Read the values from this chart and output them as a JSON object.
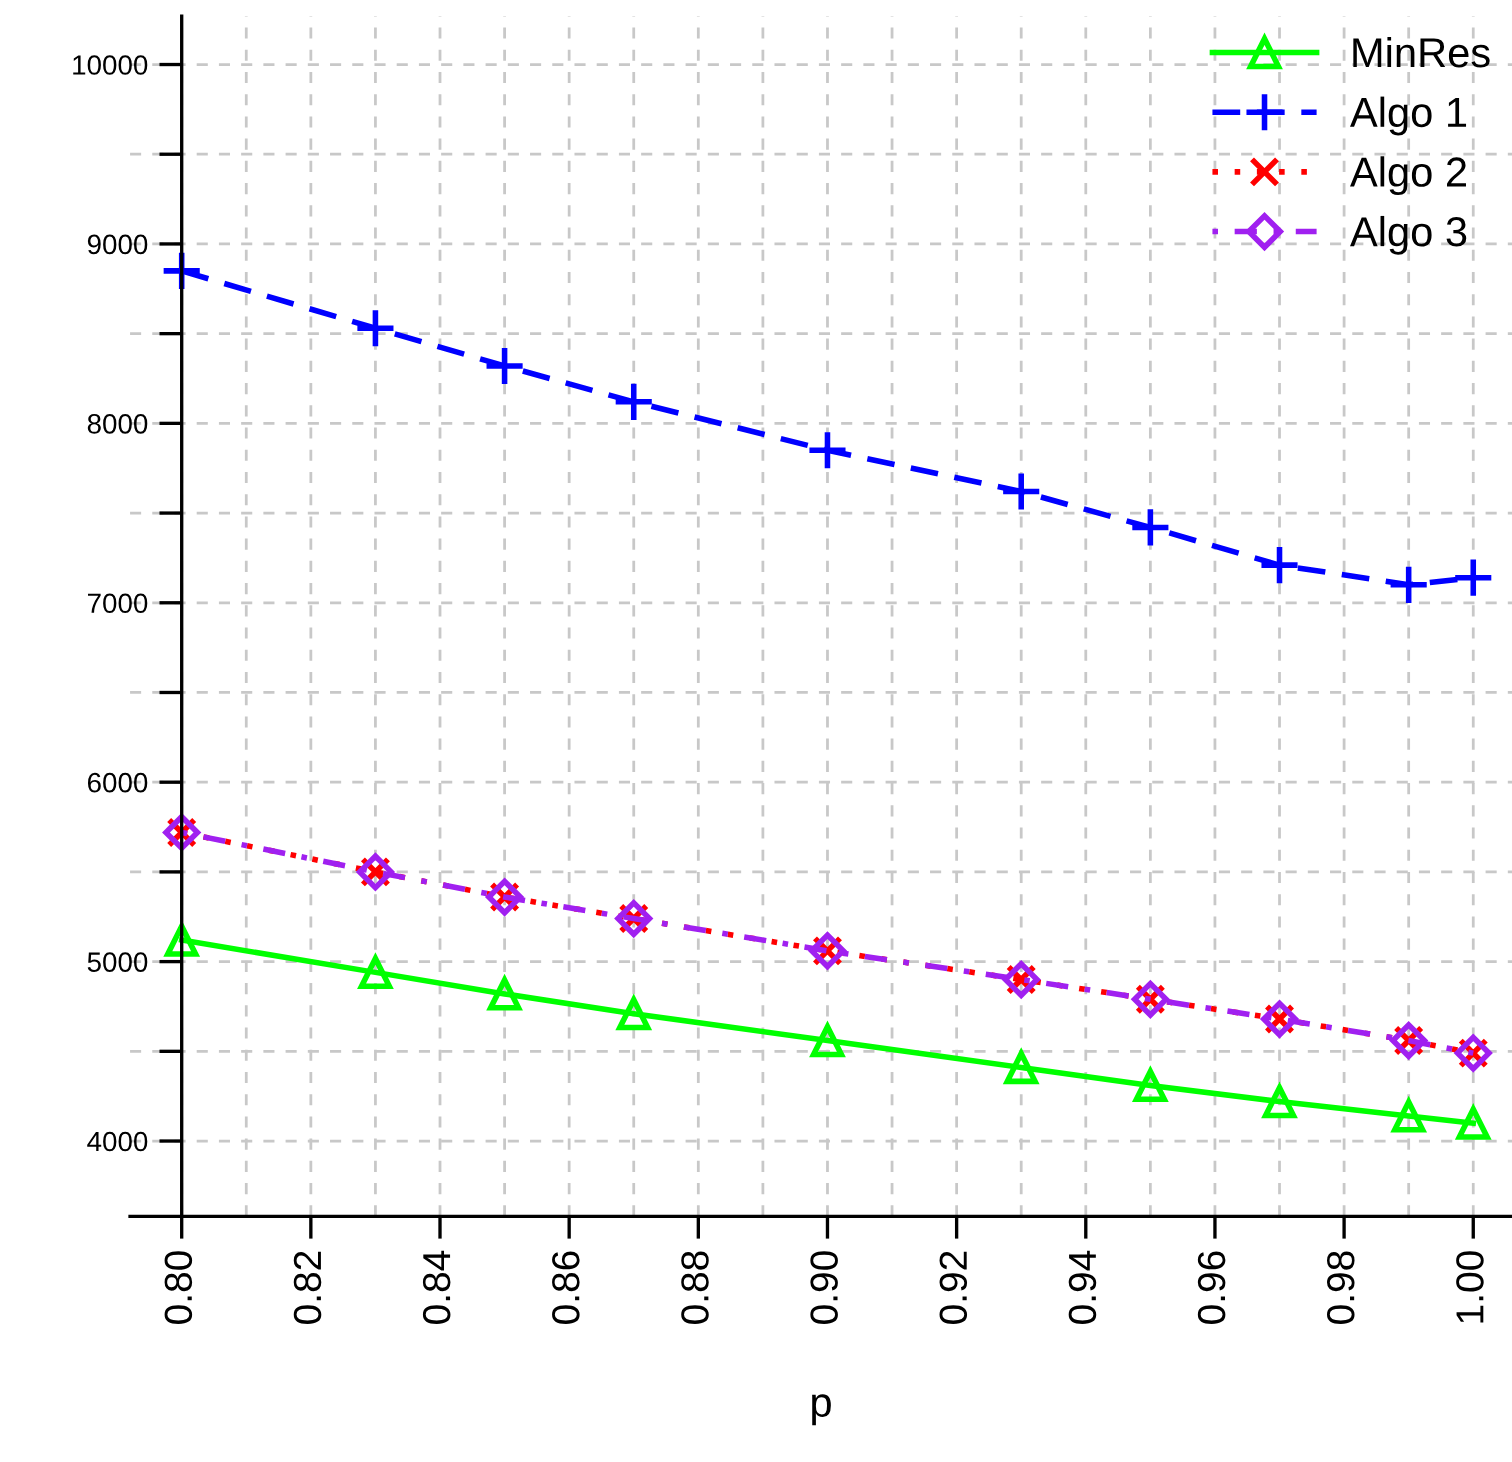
{
  "chart_data": {
    "type": "line",
    "xlabel": "p",
    "x": [
      0.8,
      0.83,
      0.85,
      0.87,
      0.9,
      0.93,
      0.95,
      0.97,
      0.99,
      1.0
    ],
    "series": [
      {
        "name": "MinRes",
        "color": "#00ff00",
        "marker": "triangle",
        "line_style": "solid",
        "values": [
          5120,
          4940,
          4820,
          4710,
          4560,
          4410,
          4310,
          4220,
          4140,
          4100
        ]
      },
      {
        "name": "Algo 1",
        "color": "#0000ff",
        "marker": "plus",
        "line_style": "dashed",
        "values": [
          8850,
          8530,
          8320,
          8120,
          7850,
          7620,
          7420,
          7210,
          7100,
          7140
        ]
      },
      {
        "name": "Algo 2",
        "color": "#ff0000",
        "marker": "cross",
        "line_style": "dotted",
        "values": [
          5720,
          5500,
          5360,
          5240,
          5060,
          4900,
          4790,
          4680,
          4560,
          4490
        ]
      },
      {
        "name": "Algo 3",
        "color": "#a020f0",
        "marker": "diamond",
        "line_style": "dashdot",
        "values": [
          5720,
          5500,
          5360,
          5240,
          5060,
          4900,
          4790,
          4680,
          4560,
          4490
        ]
      }
    ],
    "xlim": [
      0.792,
      1.006
    ],
    "ylim": [
      3580,
      10270
    ],
    "xticks": [
      {
        "value": 0.8,
        "label": "0.80"
      },
      {
        "value": 0.81,
        "label": null
      },
      {
        "value": 0.82,
        "label": "0.82"
      },
      {
        "value": 0.83,
        "label": null
      },
      {
        "value": 0.84,
        "label": "0.84"
      },
      {
        "value": 0.85,
        "label": null
      },
      {
        "value": 0.86,
        "label": "0.86"
      },
      {
        "value": 0.87,
        "label": null
      },
      {
        "value": 0.88,
        "label": "0.88"
      },
      {
        "value": 0.89,
        "label": null
      },
      {
        "value": 0.9,
        "label": "0.90"
      },
      {
        "value": 0.91,
        "label": null
      },
      {
        "value": 0.92,
        "label": "0.92"
      },
      {
        "value": 0.93,
        "label": null
      },
      {
        "value": 0.94,
        "label": "0.94"
      },
      {
        "value": 0.95,
        "label": null
      },
      {
        "value": 0.96,
        "label": "0.96"
      },
      {
        "value": 0.97,
        "label": null
      },
      {
        "value": 0.98,
        "label": "0.98"
      },
      {
        "value": 0.99,
        "label": null
      },
      {
        "value": 1.0,
        "label": "1.00"
      }
    ],
    "yticks": [
      4000,
      {
        "value": 4500,
        "label": null
      },
      5000,
      {
        "value": 5500,
        "label": null
      },
      6000,
      {
        "value": 6500,
        "label": null
      },
      7000,
      {
        "value": 7500,
        "label": null
      },
      8000,
      {
        "value": 8500,
        "label": null
      },
      9000,
      {
        "value": 9500,
        "label": null
      },
      10000
    ],
    "grid": true,
    "legend": "top right"
  }
}
